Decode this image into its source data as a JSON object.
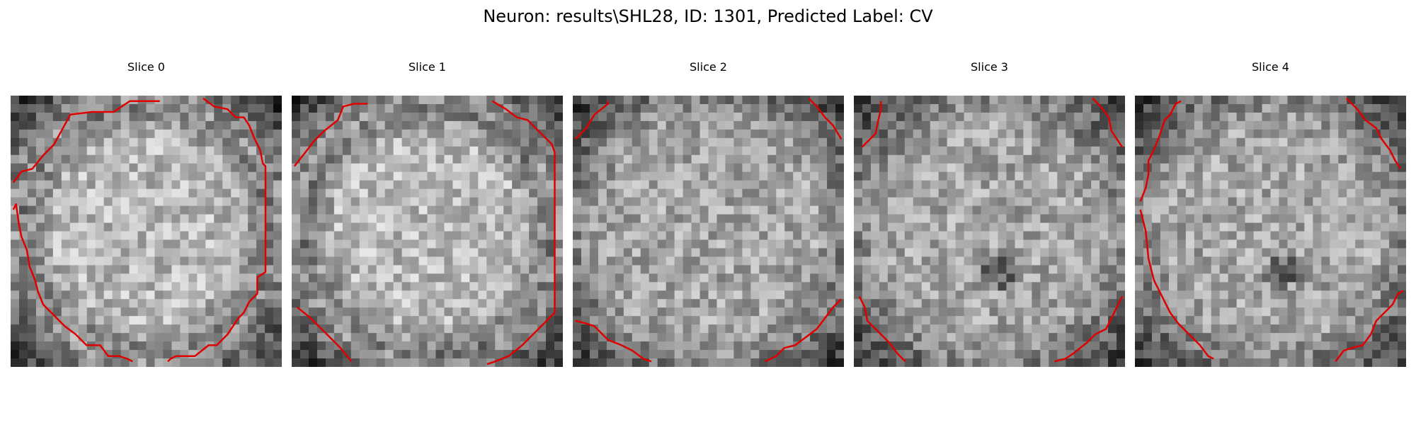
{
  "figure": {
    "title": "Neuron: results\\SHL28, ID: 1301, Predicted Label: CV",
    "contour_color": "#e00000"
  },
  "slices": [
    {
      "title": "Slice 0"
    },
    {
      "title": "Slice 1"
    },
    {
      "title": "Slice 2"
    },
    {
      "title": "Slice 3"
    },
    {
      "title": "Slice 4"
    }
  ]
}
